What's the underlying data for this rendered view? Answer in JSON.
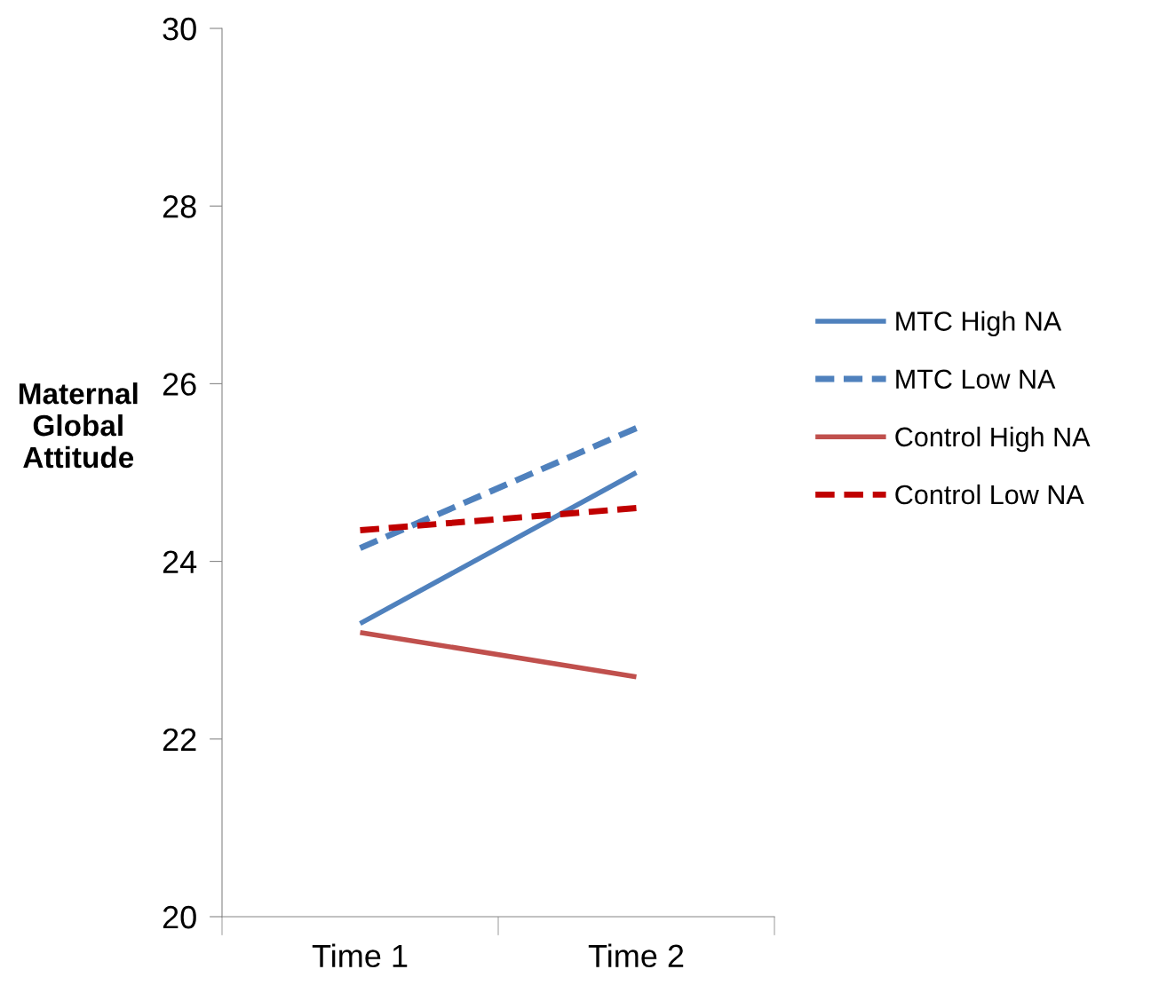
{
  "chart_data": {
    "type": "line",
    "ylabel": "Maternal\nGlobal\nAttitude",
    "categories": [
      "Time 1",
      "Time 2"
    ],
    "series": [
      {
        "name": "MTC High NA",
        "color": "#4f81bd",
        "line_style": "solid",
        "values": [
          23.3,
          25.0
        ]
      },
      {
        "name": "MTC Low NA",
        "color": "#4f81bd",
        "line_style": "dashed",
        "values": [
          24.15,
          25.5
        ]
      },
      {
        "name": "Control High NA",
        "color": "#c0504d",
        "line_style": "solid",
        "values": [
          23.2,
          22.7
        ]
      },
      {
        "name": "Control Low NA",
        "color": "#c00000",
        "line_style": "dashed",
        "values": [
          24.35,
          24.6
        ]
      }
    ],
    "ylim": [
      20,
      30
    ],
    "yticks": [
      20,
      22,
      24,
      26,
      28,
      30
    ],
    "grid": false,
    "legend": "right",
    "marker": "none"
  }
}
